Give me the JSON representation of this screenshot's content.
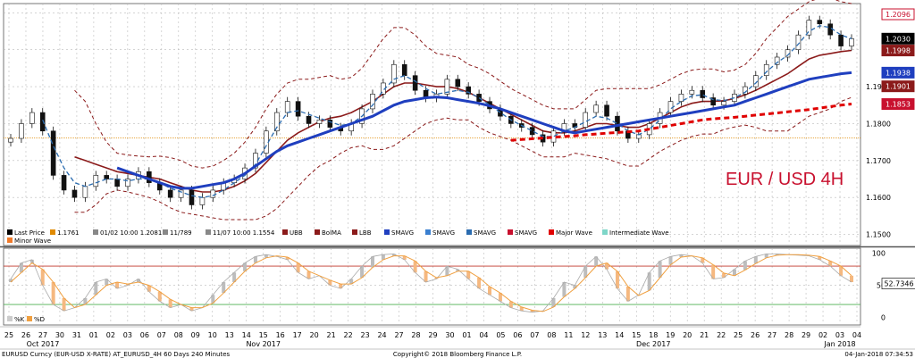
{
  "chart_data": {
    "type": "line",
    "title": "EUR / USD 4H",
    "footer": {
      "left": "EURUSD Curncy (EUR-USD X-RATE) AT_EURUSD_4H 60 Days 240 Minutes",
      "center": "Copyright© 2018 Bloomberg Finance L.P.",
      "right": "04-Jan-2018 07:34:53"
    },
    "price_axis": {
      "ticks": [
        "1.1500",
        "1.1600",
        "1.1700",
        "1.1800",
        "1.1900"
      ],
      "ylim": [
        1.147,
        1.2125
      ]
    },
    "indicator_axis": {
      "ticks": [
        "100",
        "50",
        "0"
      ],
      "ylim": [
        -12,
        108
      ]
    },
    "price_tags": [
      {
        "label": "1.2096",
        "value": 1.2096,
        "bg": "#ffffff",
        "fg": "#c8102e",
        "border": "#c8102e"
      },
      {
        "label": "1.2030",
        "value": 1.203,
        "bg": "#000000",
        "fg": "#ffffff",
        "border": "#000000"
      },
      {
        "label": "1.1998",
        "value": 1.1998,
        "bg": "#8b1a1a",
        "fg": "#ffffff",
        "border": "#8b1a1a"
      },
      {
        "label": "1.1938",
        "value": 1.1938,
        "bg": "#1f3fbf",
        "fg": "#ffffff",
        "border": "#1f3fbf"
      },
      {
        "label": "1.1901",
        "value": 1.1901,
        "bg": "#8b1a1a",
        "fg": "#ffffff",
        "border": "#8b1a1a"
      },
      {
        "label": "1.1853",
        "value": 1.1853,
        "bg": "#c8102e",
        "fg": "#ffffff",
        "border": "#c8102e"
      }
    ],
    "indicator_tag": {
      "label": "52.7346",
      "value": 52.7346
    },
    "legend_items": [
      {
        "label": "Last Price",
        "color": "#000000"
      },
      {
        "label": "1.1761",
        "color": "#e08a00"
      },
      {
        "label": "01/02 10:00 1.2081",
        "color": "#888888"
      },
      {
        "label": "11/789",
        "color": "#888888"
      },
      {
        "label": "11/07 10:00 1.1554",
        "color": "#888888"
      },
      {
        "label": "UBB",
        "color": "#8b1a1a"
      },
      {
        "label": "BolMA",
        "color": "#8b1a1a"
      },
      {
        "label": "LBB",
        "color": "#8b1a1a"
      },
      {
        "label": "SMAVG",
        "color": "#1f3fbf"
      },
      {
        "label": "SMAVG",
        "color": "#3a7fd0"
      },
      {
        "label": "SMAVG",
        "color": "#2b6cb0"
      },
      {
        "label": "SMAVG",
        "color": "#c8102e"
      },
      {
        "label": "Major Wave",
        "color": "#e00000"
      },
      {
        "label": "Intermediate Wave",
        "color": "#7ed6c8"
      },
      {
        "label": "Minor Wave",
        "color": "#f07a2a"
      }
    ],
    "indicator_legend": [
      {
        "label": "%K",
        "color": "#cccccc"
      },
      {
        "label": "%D",
        "color": "#f0a040"
      }
    ],
    "day_labels": [
      "25",
      "26",
      "27",
      "30",
      "31",
      "01",
      "02",
      "03",
      "06",
      "07",
      "08",
      "09",
      "10",
      "13",
      "14",
      "15",
      "16",
      "17",
      "20",
      "21",
      "22",
      "23",
      "24",
      "27",
      "28",
      "29",
      "30",
      "01",
      "04",
      "05",
      "06",
      "07",
      "08",
      "11",
      "12",
      "13",
      "14",
      "15",
      "18",
      "19",
      "20",
      "21",
      "22",
      "25",
      "26",
      "27",
      "28",
      "29",
      "02",
      "03",
      "04"
    ],
    "month_labels": [
      {
        "label": "Oct 2017",
        "at": 2
      },
      {
        "label": "Nov 2017",
        "at": 15
      },
      {
        "label": "Dec 2017",
        "at": 38
      },
      {
        "label": "Jan 2018",
        "at": 49
      }
    ],
    "horizontal_line": 1.1761,
    "close": [
      1.176,
      1.18,
      1.183,
      1.178,
      1.166,
      1.162,
      1.16,
      1.163,
      1.166,
      1.165,
      1.163,
      1.165,
      1.167,
      1.164,
      1.162,
      1.16,
      1.162,
      1.158,
      1.16,
      1.162,
      1.164,
      1.165,
      1.168,
      1.172,
      1.178,
      1.183,
      1.186,
      1.182,
      1.18,
      1.181,
      1.179,
      1.178,
      1.18,
      1.184,
      1.188,
      1.191,
      1.196,
      1.193,
      1.189,
      1.187,
      1.188,
      1.192,
      1.19,
      1.188,
      1.186,
      1.184,
      1.182,
      1.18,
      1.179,
      1.177,
      1.175,
      1.178,
      1.18,
      1.179,
      1.183,
      1.185,
      1.182,
      1.178,
      1.176,
      1.177,
      1.18,
      1.183,
      1.186,
      1.188,
      1.189,
      1.187,
      1.185,
      1.186,
      1.188,
      1.19,
      1.193,
      1.196,
      1.198,
      1.2,
      1.204,
      1.208,
      1.207,
      1.204,
      1.201,
      1.203
    ],
    "sma_blue": [
      null,
      null,
      null,
      null,
      null,
      null,
      null,
      null,
      null,
      null,
      1.168,
      1.167,
      1.166,
      1.165,
      1.164,
      1.163,
      1.1625,
      1.1625,
      1.163,
      1.1635,
      1.164,
      1.165,
      1.1665,
      1.1685,
      1.1705,
      1.1725,
      1.174,
      1.175,
      1.176,
      1.177,
      1.178,
      1.179,
      1.18,
      1.181,
      1.182,
      1.1835,
      1.185,
      1.186,
      1.1865,
      1.187,
      1.1872,
      1.187,
      1.1865,
      1.186,
      1.1855,
      1.1848,
      1.184,
      1.183,
      1.182,
      1.181,
      1.18,
      1.179,
      1.178,
      1.1775,
      1.178,
      1.1785,
      1.179,
      1.1795,
      1.18,
      1.1805,
      1.181,
      1.1815,
      1.182,
      1.1825,
      1.183,
      1.1835,
      1.184,
      1.1845,
      1.185,
      1.186,
      1.187,
      1.188,
      1.189,
      1.19,
      1.191,
      1.192,
      1.1925,
      1.193,
      1.1935,
      1.1938
    ],
    "bb_mid": [
      null,
      null,
      null,
      null,
      null,
      null,
      1.171,
      1.17,
      1.169,
      1.168,
      1.167,
      1.1665,
      1.166,
      1.1655,
      1.165,
      1.164,
      1.163,
      1.162,
      1.1615,
      1.1615,
      1.162,
      1.163,
      1.1645,
      1.1665,
      1.1695,
      1.1725,
      1.1755,
      1.1775,
      1.179,
      1.1805,
      1.1815,
      1.182,
      1.183,
      1.1845,
      1.186,
      1.188,
      1.19,
      1.191,
      1.191,
      1.1905,
      1.19,
      1.19,
      1.1895,
      1.1885,
      1.187,
      1.1855,
      1.184,
      1.1825,
      1.181,
      1.1795,
      1.178,
      1.1775,
      1.1775,
      1.178,
      1.179,
      1.18,
      1.18,
      1.1795,
      1.179,
      1.179,
      1.18,
      1.1815,
      1.183,
      1.1845,
      1.1855,
      1.186,
      1.186,
      1.1862,
      1.1868,
      1.1878,
      1.189,
      1.1905,
      1.192,
      1.1935,
      1.1955,
      1.1975,
      1.1985,
      1.199,
      1.1995,
      1.1998
    ],
    "bb_up": [
      null,
      null,
      null,
      null,
      null,
      null,
      1.189,
      1.186,
      1.18,
      1.175,
      1.172,
      1.1715,
      1.1712,
      1.171,
      1.1712,
      1.1708,
      1.17,
      1.1685,
      1.168,
      1.1685,
      1.17,
      1.172,
      1.175,
      1.179,
      1.184,
      1.188,
      1.191,
      1.192,
      1.192,
      1.1925,
      1.193,
      1.192,
      1.1925,
      1.195,
      1.199,
      1.203,
      1.206,
      1.206,
      1.204,
      1.201,
      1.199,
      1.1985,
      1.198,
      1.196,
      1.195,
      1.1935,
      1.1915,
      1.1895,
      1.188,
      1.1865,
      1.185,
      1.184,
      1.184,
      1.184,
      1.1865,
      1.189,
      1.1895,
      1.1895,
      1.1895,
      1.1895,
      1.1895,
      1.1905,
      1.192,
      1.1935,
      1.1945,
      1.1948,
      1.1948,
      1.194,
      1.1945,
      1.196,
      1.199,
      1.203,
      1.206,
      1.209,
      1.211,
      1.213,
      1.214,
      1.214,
      1.213,
      1.2125
    ],
    "bb_low": [
      null,
      null,
      null,
      null,
      null,
      null,
      1.156,
      1.156,
      1.158,
      1.161,
      1.162,
      1.1615,
      1.1608,
      1.16,
      1.1588,
      1.1572,
      1.156,
      1.1555,
      1.155,
      1.1545,
      1.154,
      1.154,
      1.154,
      1.154,
      1.155,
      1.157,
      1.16,
      1.163,
      1.166,
      1.1685,
      1.17,
      1.172,
      1.1735,
      1.174,
      1.173,
      1.173,
      1.174,
      1.176,
      1.178,
      1.18,
      1.181,
      1.1815,
      1.181,
      1.181,
      1.179,
      1.1775,
      1.1765,
      1.1755,
      1.174,
      1.1725,
      1.171,
      1.171,
      1.171,
      1.172,
      1.1715,
      1.171,
      1.1705,
      1.1695,
      1.1685,
      1.1685,
      1.1705,
      1.1725,
      1.174,
      1.1755,
      1.1765,
      1.1772,
      1.1772,
      1.1784,
      1.1791,
      1.1796,
      1.179,
      1.178,
      1.178,
      1.178,
      1.18,
      1.182,
      1.183,
      1.184,
      1.186,
      1.1871
    ],
    "sma_dash": [
      null,
      null,
      null,
      1.181,
      1.174,
      1.168,
      1.164,
      1.163,
      1.164,
      1.165,
      1.165,
      1.1645,
      1.165,
      1.165,
      1.164,
      1.1625,
      1.1615,
      1.1605,
      1.16,
      1.1605,
      1.162,
      1.164,
      1.166,
      1.169,
      1.174,
      1.179,
      1.183,
      1.1835,
      1.1825,
      1.1815,
      1.1805,
      1.1795,
      1.18,
      1.182,
      1.185,
      1.189,
      1.192,
      1.193,
      1.1915,
      1.1895,
      1.188,
      1.1885,
      1.189,
      1.1885,
      1.187,
      1.185,
      1.183,
      1.181,
      1.1795,
      1.178,
      1.1765,
      1.1765,
      1.178,
      1.179,
      1.1805,
      1.182,
      1.1815,
      1.18,
      1.178,
      1.177,
      1.1785,
      1.181,
      1.184,
      1.186,
      1.1875,
      1.1878,
      1.1865,
      1.1862,
      1.187,
      1.1885,
      1.191,
      1.194,
      1.1965,
      1.1985,
      1.2015,
      1.205,
      1.2065,
      1.206,
      1.204,
      1.203
    ],
    "red_dash": [
      null,
      null,
      null,
      null,
      null,
      null,
      null,
      null,
      null,
      null,
      null,
      null,
      null,
      null,
      null,
      null,
      null,
      null,
      null,
      null,
      null,
      null,
      null,
      null,
      null,
      null,
      null,
      null,
      null,
      null,
      null,
      null,
      null,
      null,
      null,
      null,
      null,
      null,
      null,
      null,
      null,
      null,
      null,
      null,
      null,
      null,
      null,
      1.1755,
      1.1757,
      1.1759,
      1.1761,
      1.1763,
      1.1765,
      1.1767,
      1.177,
      1.1772,
      1.1774,
      1.1776,
      1.1778,
      1.178,
      1.1785,
      1.179,
      1.1795,
      1.18,
      1.1805,
      1.181,
      1.1813,
      1.1815,
      1.1817,
      1.182,
      1.1823,
      1.1826,
      1.1829,
      1.1832,
      1.1835,
      1.1838,
      1.1842,
      1.1846,
      1.185,
      1.1853
    ],
    "stoch_k": [
      60,
      85,
      90,
      50,
      20,
      10,
      15,
      30,
      55,
      60,
      45,
      50,
      60,
      40,
      25,
      15,
      20,
      10,
      15,
      35,
      55,
      70,
      85,
      95,
      98,
      95,
      90,
      70,
      60,
      65,
      50,
      45,
      60,
      80,
      95,
      98,
      99,
      90,
      70,
      55,
      60,
      80,
      75,
      60,
      45,
      35,
      25,
      15,
      10,
      8,
      10,
      30,
      55,
      50,
      80,
      95,
      75,
      45,
      25,
      35,
      70,
      88,
      95,
      98,
      96,
      85,
      60,
      62,
      75,
      88,
      95,
      99,
      99,
      98,
      97,
      96,
      90,
      80,
      65,
      55
    ],
    "stoch_d": [
      55,
      70,
      85,
      75,
      55,
      30,
      15,
      20,
      35,
      50,
      55,
      52,
      55,
      50,
      40,
      28,
      20,
      15,
      15,
      22,
      38,
      55,
      72,
      85,
      93,
      96,
      94,
      85,
      72,
      65,
      58,
      52,
      52,
      62,
      78,
      90,
      96,
      96,
      88,
      72,
      62,
      65,
      72,
      72,
      62,
      48,
      38,
      25,
      16,
      11,
      9,
      16,
      32,
      45,
      62,
      80,
      85,
      72,
      48,
      34,
      42,
      62,
      82,
      94,
      96,
      93,
      82,
      69,
      65,
      74,
      84,
      93,
      97,
      98,
      98,
      97,
      95,
      88,
      80,
      65
    ]
  }
}
